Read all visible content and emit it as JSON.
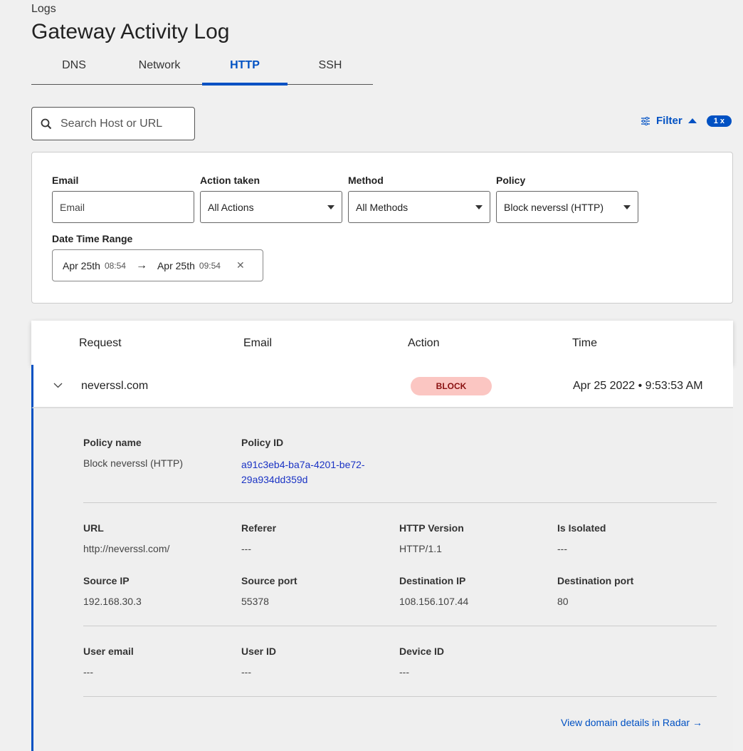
{
  "breadcrumb": "Logs",
  "title": "Gateway Activity Log",
  "tabs": [
    {
      "label": "DNS"
    },
    {
      "label": "Network"
    },
    {
      "label": "HTTP",
      "active": true
    },
    {
      "label": "SSH"
    }
  ],
  "search": {
    "placeholder": "Search Host or URL"
  },
  "filter": {
    "label": "Filter",
    "count": "1 x"
  },
  "filters": {
    "email": {
      "label": "Email",
      "placeholder": "Email"
    },
    "action": {
      "label": "Action taken",
      "value": "All Actions"
    },
    "method": {
      "label": "Method",
      "value": "All Methods"
    },
    "policy": {
      "label": "Policy",
      "value": "Block neverssl (HTTP)"
    },
    "datetime": {
      "label": "Date Time Range",
      "start_date": "Apr 25th",
      "start_time": "08:54",
      "end_date": "Apr 25th",
      "end_time": "09:54"
    }
  },
  "table": {
    "columns": [
      "Request",
      "Email",
      "Action",
      "Time"
    ],
    "rows": [
      {
        "request": "neverssl.com",
        "email": "",
        "action": "BLOCK",
        "time": "Apr 25 2022 • 9:53:53 AM"
      }
    ]
  },
  "details": {
    "policy_name": {
      "label": "Policy name",
      "value": "Block neverssl (HTTP)"
    },
    "policy_id": {
      "label": "Policy ID",
      "line1": "a91c3eb4-ba7a-4201-be72-",
      "line2": "29a934dd359d"
    },
    "url": {
      "label": "URL",
      "value": "http://neverssl.com/"
    },
    "referer": {
      "label": "Referer",
      "value": "---"
    },
    "http_version": {
      "label": "HTTP Version",
      "value": "HTTP/1.1"
    },
    "is_isolated": {
      "label": "Is Isolated",
      "value": "---"
    },
    "source_ip": {
      "label": "Source IP",
      "value": "192.168.30.3"
    },
    "source_port": {
      "label": "Source port",
      "value": "55378"
    },
    "destination_ip": {
      "label": "Destination IP",
      "value": "108.156.107.44"
    },
    "destination_port": {
      "label": "Destination port",
      "value": "80"
    },
    "user_email": {
      "label": "User email",
      "value": "---"
    },
    "user_id": {
      "label": "User ID",
      "value": "---"
    },
    "device_id": {
      "label": "Device ID",
      "value": "---"
    },
    "radar_link": "View domain details in Radar →"
  },
  "colors": {
    "accent": "#0051c3",
    "block_bg": "#fbc6c2",
    "block_text": "#8a1111"
  }
}
